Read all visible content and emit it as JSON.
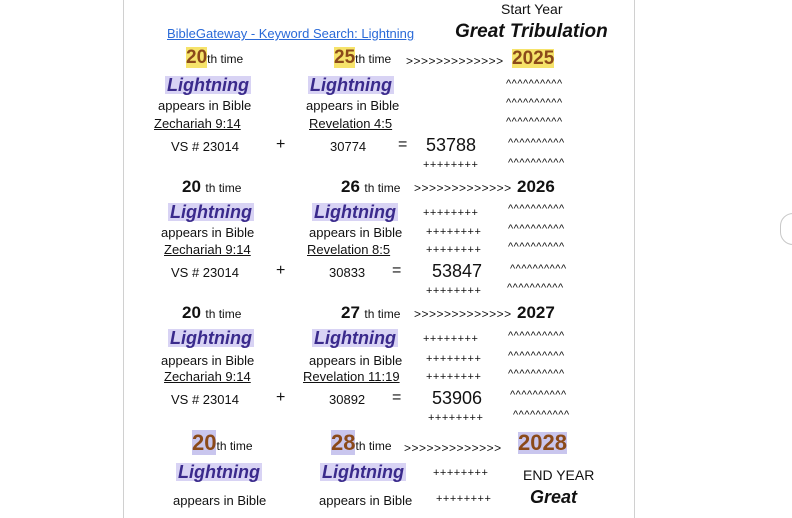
{
  "header": {
    "link": "BibleGateway - Keyword Search: Lightning",
    "start_year": "Start Year",
    "title": "Great Tribulation"
  },
  "common": {
    "word": "Lightning",
    "appears": "appears in Bible",
    "th_time": "th time",
    "plus": "++++++++",
    "carets": "^^^^^^^^^^",
    "plus_sign": "+",
    "equals": "="
  },
  "block1": {
    "left_count": "20",
    "right_count": "25",
    "arrows": ">>>>>>>>>>>>>",
    "year": "2025",
    "left_ref": "Zechariah 9:14",
    "right_ref": "Revelation 4:5",
    "left_vs": "VS # 23014",
    "right_num": "30774",
    "result": "53788"
  },
  "block2": {
    "left_count": "20",
    "right_count": "26",
    "arrows": ">>>>>>>>>>>>>",
    "year": "2026",
    "left_ref": "Zechariah 9:14",
    "right_ref": "Revelation 8:5",
    "left_vs": "VS # 23014",
    "right_num": "30833",
    "result": "53847"
  },
  "block3": {
    "left_count": "20",
    "right_count": "27",
    "arrows": ">>>>>>>>>>>>>",
    "year": "2027",
    "left_ref": "Zechariah 9:14",
    "right_ref": "Revelation 11:19",
    "left_vs": "VS # 23014",
    "right_num": "30892",
    "result": "53906"
  },
  "block4": {
    "left_count": "20",
    "right_count": "28",
    "arrows": ">>>>>>>>>>>>>",
    "year": "2028",
    "end_year": "END YEAR",
    "great": "Great"
  }
}
